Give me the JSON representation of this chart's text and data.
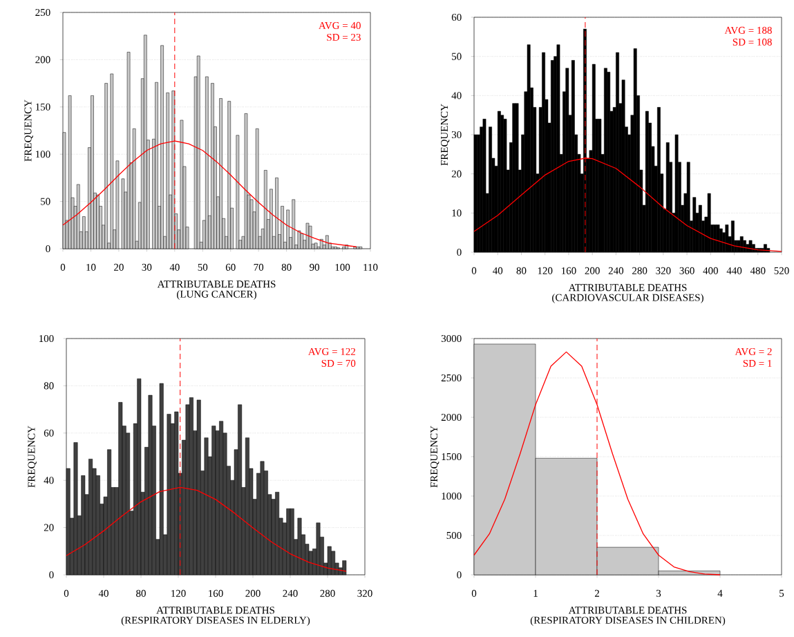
{
  "chart_data": [
    {
      "type": "histogram",
      "title": "(LUNG CANCER)",
      "xlabel": "ATTRIBUTABLE DEATHS",
      "ylabel": "FREQUENCY",
      "xlim": [
        0,
        110
      ],
      "ylim": [
        0,
        250
      ],
      "xticks": [
        0,
        10,
        20,
        30,
        40,
        50,
        60,
        70,
        80,
        90,
        100,
        110
      ],
      "yticks": [
        0,
        50,
        100,
        150,
        200,
        250
      ],
      "grid": "y",
      "annotations": [
        "AVG = 40",
        "SD = 23"
      ],
      "ref_lines": [
        {
          "axis": "x",
          "value": 40,
          "color": "#ff0000",
          "line_style": "dashed"
        }
      ],
      "series": [
        {
          "color": "#c8c8c8",
          "bins": [
            0,
            1,
            2,
            3,
            4,
            5,
            6,
            7,
            8,
            9,
            10,
            11,
            12,
            13,
            14,
            15,
            16,
            17,
            18,
            19,
            20,
            21,
            22,
            23,
            24,
            25,
            26,
            27,
            28,
            29,
            30,
            31,
            32,
            33,
            34,
            35,
            36,
            37,
            38,
            39,
            40,
            41,
            42,
            43,
            44,
            45,
            46,
            47,
            48,
            49,
            50,
            51,
            52,
            53,
            54,
            55,
            56,
            57,
            58,
            59,
            60,
            61,
            62,
            63,
            64,
            65,
            66,
            67,
            68,
            69,
            70,
            71,
            72,
            73,
            74,
            75,
            76,
            77,
            78,
            79,
            80,
            81,
            82,
            83,
            84,
            85,
            86,
            87,
            88,
            89,
            90,
            91,
            92,
            93,
            94,
            95,
            96,
            97,
            98,
            99,
            100,
            101,
            102,
            103,
            104,
            105,
            106,
            107
          ],
          "values": [
            123,
            30,
            162,
            54,
            45,
            68,
            18,
            34,
            18,
            107,
            162,
            59,
            57,
            45,
            25,
            175,
            6,
            185,
            20,
            93,
            0,
            74,
            60,
            208,
            91,
            127,
            8,
            49,
            180,
            226,
            115,
            0,
            116,
            176,
            45,
            215,
            13,
            165,
            57,
            167,
            37,
            20,
            136,
            87,
            23,
            0,
            0,
            182,
            204,
            7,
            30,
            182,
            35,
            175,
            129,
            55,
            159,
            32,
            13,
            156,
            43,
            0,
            120,
            9,
            13,
            143,
            57,
            52,
            39,
            127,
            13,
            21,
            83,
            31,
            63,
            13,
            75,
            15,
            45,
            7,
            41,
            12,
            52,
            4,
            19,
            16,
            9,
            27,
            24,
            5,
            6,
            2,
            10,
            4,
            14,
            6,
            2,
            2,
            1,
            0,
            2,
            4,
            0,
            0,
            2,
            2,
            2
          ]
        },
        {
          "type": "line",
          "color": "#ff0000",
          "x": [
            0,
            5,
            10,
            15,
            20,
            25,
            30,
            35,
            40,
            45,
            50,
            55,
            60,
            65,
            70,
            75,
            80,
            85,
            90,
            95,
            100,
            105
          ],
          "values": [
            25,
            36,
            49,
            63,
            78,
            92,
            104,
            111,
            114,
            111,
            104,
            92,
            78,
            63,
            49,
            36,
            25,
            17,
            11,
            6,
            4,
            2
          ]
        }
      ]
    },
    {
      "type": "histogram",
      "title": "(CARDIOVASCULAR DISEASES)",
      "xlabel": "ATTRIBUTABLE DEATHS",
      "ylabel": "FREQUENCY",
      "xlim": [
        0,
        520
      ],
      "ylim": [
        0,
        60
      ],
      "xticks": [
        0,
        40,
        80,
        120,
        160,
        200,
        240,
        280,
        320,
        360,
        400,
        440,
        480,
        520
      ],
      "yticks": [
        0,
        10,
        20,
        30,
        40,
        50,
        60
      ],
      "grid": "y",
      "annotations": [
        "AVG = 188",
        "SD = 108"
      ],
      "ref_lines": [
        {
          "axis": "x",
          "value": 188,
          "color": "#ff0000",
          "line_style": "dashed"
        }
      ],
      "series": [
        {
          "color": "#000000",
          "bins": [
            0,
            5,
            10,
            15,
            20,
            25,
            30,
            35,
            40,
            45,
            50,
            55,
            60,
            65,
            70,
            75,
            80,
            85,
            90,
            95,
            100,
            105,
            110,
            115,
            120,
            125,
            130,
            135,
            140,
            145,
            150,
            155,
            160,
            165,
            170,
            175,
            180,
            185,
            190,
            195,
            200,
            205,
            210,
            215,
            220,
            225,
            230,
            235,
            240,
            245,
            250,
            255,
            260,
            265,
            270,
            275,
            280,
            285,
            290,
            295,
            300,
            305,
            310,
            315,
            320,
            325,
            330,
            335,
            340,
            345,
            350,
            355,
            360,
            365,
            370,
            375,
            380,
            385,
            390,
            395,
            400,
            405,
            410,
            415,
            420,
            425,
            430,
            435,
            440,
            445,
            450,
            455,
            460,
            465,
            470,
            475,
            480,
            485,
            490,
            495,
            500
          ],
          "values": [
            30,
            30,
            32,
            34,
            15,
            32,
            24,
            22,
            36,
            35,
            34,
            21,
            28,
            38,
            38,
            21,
            30,
            41,
            53,
            42,
            37,
            20,
            37,
            51,
            39,
            33,
            49,
            50,
            53,
            25,
            41,
            47,
            35,
            49,
            30,
            25,
            20,
            57,
            24,
            26,
            48,
            34,
            34,
            25,
            47,
            46,
            36,
            37,
            51,
            38,
            44,
            32,
            30,
            35,
            52,
            40,
            21,
            12,
            36,
            33,
            27,
            22,
            37,
            20,
            11,
            28,
            23,
            10,
            30,
            23,
            12,
            15,
            23,
            8,
            14,
            10,
            12,
            8,
            9,
            15,
            7,
            7,
            7,
            6,
            5,
            7,
            4,
            8,
            3,
            3,
            4,
            3,
            2,
            3,
            2,
            1,
            1,
            1,
            2,
            1
          ]
        },
        {
          "type": "line",
          "color": "#ff0000",
          "x": [
            0,
            40,
            80,
            120,
            160,
            188,
            200,
            240,
            280,
            320,
            360,
            400,
            440,
            480,
            520
          ],
          "values": [
            5.3,
            9.4,
            14.6,
            19.7,
            23.2,
            24,
            23.9,
            21.4,
            16.7,
            11.4,
            6.8,
            3.5,
            1.6,
            0.6,
            0.2
          ]
        }
      ]
    },
    {
      "type": "histogram",
      "title": "(RESPIRATORY DISEASES IN ELDERLY)",
      "xlabel": "ATTRIBUTABLE DEATHS",
      "ylabel": "FREQUENCY",
      "xlim": [
        0,
        320
      ],
      "ylim": [
        0,
        100
      ],
      "xticks": [
        0,
        40,
        80,
        120,
        160,
        200,
        240,
        280,
        320
      ],
      "yticks": [
        0,
        20,
        40,
        60,
        80,
        100
      ],
      "grid": "y",
      "annotations": [
        "AVG = 122",
        "SD = 70"
      ],
      "ref_lines": [
        {
          "axis": "x",
          "value": 122,
          "color": "#ff0000",
          "line_style": "dashed"
        }
      ],
      "series": [
        {
          "color": "#404040",
          "bins": [
            0,
            4,
            8,
            12,
            16,
            20,
            24,
            28,
            32,
            36,
            40,
            44,
            48,
            52,
            56,
            60,
            64,
            68,
            72,
            76,
            80,
            84,
            88,
            92,
            96,
            100,
            104,
            108,
            112,
            116,
            120,
            124,
            128,
            132,
            136,
            140,
            144,
            148,
            152,
            156,
            160,
            164,
            168,
            172,
            176,
            180,
            184,
            188,
            192,
            196,
            200,
            204,
            208,
            212,
            216,
            220,
            224,
            228,
            232,
            236,
            240,
            244,
            248,
            252,
            256,
            260,
            264,
            268,
            272,
            276,
            280,
            284,
            288,
            292,
            296,
            300
          ],
          "values": [
            45,
            24,
            56,
            25,
            42,
            34,
            49,
            45,
            42,
            30,
            33,
            53,
            37,
            37,
            73,
            63,
            60,
            27,
            64,
            83,
            35,
            54,
            76,
            63,
            15,
            81,
            17,
            68,
            64,
            69,
            43,
            57,
            72,
            75,
            61,
            74,
            44,
            58,
            50,
            63,
            61,
            65,
            60,
            46,
            40,
            53,
            72,
            37,
            58,
            45,
            32,
            43,
            48,
            44,
            34,
            32,
            35,
            24,
            22,
            28,
            28,
            15,
            24,
            17,
            13,
            10,
            11,
            22,
            16,
            5,
            12,
            10,
            5,
            3,
            6
          ]
        },
        {
          "type": "line",
          "color": "#ff0000",
          "x": [
            0,
            20,
            40,
            60,
            80,
            100,
            122,
            140,
            160,
            180,
            200,
            220,
            240,
            260,
            280,
            300
          ],
          "values": [
            8.1,
            12.8,
            18.6,
            25,
            30.9,
            35.2,
            37,
            35.8,
            31.9,
            26.2,
            19.9,
            13.9,
            8.9,
            5.3,
            2.9,
            1.5
          ]
        }
      ]
    },
    {
      "type": "histogram",
      "title": "(RESPIRATORY DISEASES IN CHILDREN)",
      "xlabel": "ATTRIBUTABLE DEATHS",
      "ylabel": "FREQUENCY",
      "xlim": [
        0,
        5
      ],
      "ylim": [
        0,
        3000
      ],
      "xticks": [
        0,
        1,
        2,
        3,
        4,
        5
      ],
      "yticks": [
        0,
        500,
        1000,
        1500,
        2000,
        2500,
        3000
      ],
      "grid": "y",
      "annotations": [
        "AVG = 2",
        "SD = 1"
      ],
      "ref_lines": [
        {
          "axis": "x",
          "value": 2,
          "color": "#ff0000",
          "line_style": "dashed"
        }
      ],
      "series": [
        {
          "color": "#c8c8c8",
          "bins": [
            0,
            1,
            2,
            3,
            4
          ],
          "values": [
            2930,
            1480,
            350,
            50
          ]
        },
        {
          "type": "line",
          "color": "#ff0000",
          "x": [
            0,
            0.25,
            0.5,
            0.75,
            1,
            1.25,
            1.5,
            1.75,
            2,
            2.25,
            2.5,
            2.75,
            3,
            3.25,
            3.5,
            3.75,
            4
          ],
          "values": [
            250,
            520,
            960,
            1540,
            2160,
            2650,
            2830,
            2650,
            2160,
            1540,
            960,
            520,
            250,
            100,
            40,
            10,
            0
          ]
        }
      ]
    }
  ]
}
